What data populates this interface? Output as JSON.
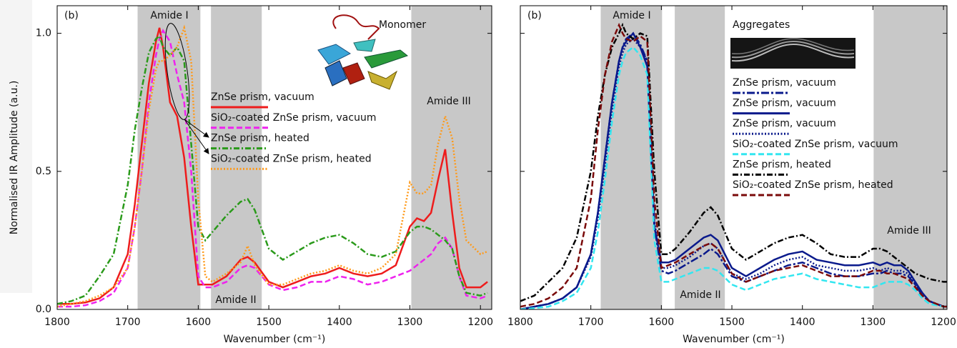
{
  "chart_data": [
    {
      "type": "line",
      "ylabel": "Normalised IR Amplitude (a.u.)",
      "xlabel": "Wavenumber (cm⁻¹)",
      "xlim": [
        1800,
        1184
      ],
      "ylim": [
        0,
        1.1
      ],
      "xticks": [
        1800,
        1700,
        1600,
        1500,
        1400,
        1300,
        1200
      ],
      "yticks": [
        {
          "value": 0,
          "label": "0.0"
        },
        0.5,
        {
          "value": 1,
          "label": "1.0"
        }
      ],
      "bands": [
        [
          1686,
          1597
        ],
        [
          1582,
          1510
        ],
        [
          1298,
          1184
        ]
      ],
      "band_color": "#c8c8c8",
      "annotations": [
        "(b)",
        "Amide I",
        "Monomer",
        "Amide III",
        "Amide II"
      ],
      "x": [
        1800,
        1780,
        1760,
        1740,
        1720,
        1700,
        1690,
        1680,
        1670,
        1660,
        1655,
        1650,
        1640,
        1630,
        1620,
        1610,
        1600,
        1590,
        1580,
        1560,
        1540,
        1530,
        1520,
        1500,
        1480,
        1460,
        1440,
        1420,
        1400,
        1380,
        1360,
        1340,
        1320,
        1300,
        1290,
        1280,
        1270,
        1260,
        1250,
        1240,
        1230,
        1220,
        1200,
        1190
      ],
      "series": [
        {
          "name": "ZnSe prism, vacuum",
          "color": "#ee1c1c",
          "style": "solid",
          "values": [
            0.02,
            0.02,
            0.025,
            0.04,
            0.08,
            0.2,
            0.38,
            0.6,
            0.82,
            0.97,
            1.02,
            0.95,
            0.75,
            0.7,
            0.55,
            0.3,
            0.09,
            0.09,
            0.09,
            0.12,
            0.18,
            0.19,
            0.17,
            0.1,
            0.08,
            0.1,
            0.12,
            0.13,
            0.15,
            0.13,
            0.12,
            0.13,
            0.16,
            0.3,
            0.33,
            0.32,
            0.35,
            0.47,
            0.58,
            0.35,
            0.15,
            0.08,
            0.08,
            0.1
          ]
        },
        {
          "name": "SiO₂-coated ZnSe prism, vacuum",
          "color": "#ee22ee",
          "style": "dashed",
          "values": [
            0.01,
            0.01,
            0.015,
            0.03,
            0.06,
            0.15,
            0.3,
            0.5,
            0.75,
            0.92,
            0.98,
            1.01,
            0.97,
            0.85,
            0.75,
            0.5,
            0.12,
            0.08,
            0.08,
            0.1,
            0.15,
            0.16,
            0.15,
            0.09,
            0.07,
            0.08,
            0.1,
            0.1,
            0.12,
            0.11,
            0.09,
            0.1,
            0.12,
            0.14,
            0.16,
            0.18,
            0.2,
            0.24,
            0.26,
            0.22,
            0.12,
            0.05,
            0.04,
            0.05
          ]
        },
        {
          "name": "ZnSe prism, heated",
          "color": "#2a9a1a",
          "style": "dashdot",
          "values": [
            0.02,
            0.03,
            0.05,
            0.12,
            0.2,
            0.45,
            0.65,
            0.8,
            0.93,
            0.98,
            0.99,
            0.95,
            0.92,
            0.95,
            0.9,
            0.6,
            0.3,
            0.25,
            0.28,
            0.34,
            0.39,
            0.4,
            0.36,
            0.22,
            0.18,
            0.21,
            0.24,
            0.26,
            0.27,
            0.24,
            0.2,
            0.19,
            0.21,
            0.28,
            0.3,
            0.3,
            0.29,
            0.27,
            0.25,
            0.22,
            0.12,
            0.06,
            0.05,
            0.06
          ]
        },
        {
          "name": "SiO₂-coated ZnSe prism, heated",
          "color": "#ff9a1a",
          "style": "dotted",
          "values": [
            0.01,
            0.02,
            0.03,
            0.05,
            0.08,
            0.15,
            0.3,
            0.5,
            0.72,
            0.87,
            0.9,
            0.9,
            0.92,
            0.95,
            1.02,
            0.9,
            0.4,
            0.12,
            0.1,
            0.13,
            0.17,
            0.23,
            0.16,
            0.09,
            0.09,
            0.11,
            0.13,
            0.14,
            0.16,
            0.14,
            0.13,
            0.15,
            0.2,
            0.46,
            0.42,
            0.42,
            0.45,
            0.6,
            0.7,
            0.62,
            0.4,
            0.25,
            0.2,
            0.21
          ]
        }
      ]
    },
    {
      "type": "line",
      "xlabel": "Wavenumber (cm⁻¹)",
      "xlim": [
        1800,
        1195
      ],
      "ylim": [
        0,
        1.1
      ],
      "xticks": [
        1800,
        1700,
        1600,
        1500,
        1400,
        1300,
        1200
      ],
      "yticks": [
        0,
        0.5,
        1
      ],
      "bands": [
        [
          1686,
          1599
        ],
        [
          1581,
          1510
        ],
        [
          1299,
          1195
        ]
      ],
      "band_color": "#c8c8c8",
      "annotations": [
        "(b)",
        "Amide I",
        "Aggregates",
        "Amide II",
        "Amide III"
      ],
      "x": [
        1800,
        1780,
        1760,
        1740,
        1720,
        1700,
        1690,
        1680,
        1670,
        1660,
        1655,
        1650,
        1640,
        1630,
        1620,
        1610,
        1600,
        1590,
        1580,
        1560,
        1540,
        1530,
        1520,
        1500,
        1480,
        1460,
        1440,
        1420,
        1400,
        1380,
        1360,
        1340,
        1320,
        1300,
        1290,
        1280,
        1270,
        1260,
        1250,
        1240,
        1230,
        1220,
        1200,
        1195
      ],
      "series": [
        {
          "name": "ZnSe prism, vacuum",
          "color": "#0a1a8c",
          "style": "longdashdot",
          "values": [
            0.0,
            0.01,
            0.02,
            0.04,
            0.08,
            0.2,
            0.35,
            0.55,
            0.75,
            0.9,
            0.95,
            0.98,
            1.0,
            0.96,
            0.9,
            0.3,
            0.14,
            0.13,
            0.14,
            0.17,
            0.2,
            0.22,
            0.2,
            0.12,
            0.1,
            0.12,
            0.14,
            0.16,
            0.17,
            0.15,
            0.13,
            0.12,
            0.12,
            0.13,
            0.13,
            0.14,
            0.13,
            0.13,
            0.12,
            0.09,
            0.05,
            0.03,
            0.01,
            0.01
          ]
        },
        {
          "name": "ZnSe prism, vacuum",
          "color": "#0a1a8c",
          "style": "solid",
          "values": [
            0.0,
            0.01,
            0.02,
            0.04,
            0.08,
            0.2,
            0.35,
            0.55,
            0.75,
            0.9,
            0.95,
            0.97,
            1.0,
            0.95,
            0.88,
            0.3,
            0.17,
            0.17,
            0.18,
            0.22,
            0.26,
            0.27,
            0.25,
            0.15,
            0.12,
            0.15,
            0.18,
            0.2,
            0.21,
            0.18,
            0.17,
            0.16,
            0.16,
            0.17,
            0.16,
            0.17,
            0.16,
            0.16,
            0.14,
            0.1,
            0.06,
            0.03,
            0.01,
            0.01
          ]
        },
        {
          "name": "ZnSe prism, vacuum",
          "color": "#0a1a8c",
          "style": "dotted",
          "values": [
            0.0,
            0.01,
            0.02,
            0.04,
            0.08,
            0.19,
            0.33,
            0.52,
            0.72,
            0.88,
            0.93,
            0.96,
            0.98,
            0.95,
            0.9,
            0.32,
            0.15,
            0.15,
            0.16,
            0.19,
            0.23,
            0.24,
            0.22,
            0.13,
            0.11,
            0.13,
            0.16,
            0.18,
            0.19,
            0.16,
            0.15,
            0.14,
            0.14,
            0.15,
            0.14,
            0.15,
            0.14,
            0.14,
            0.13,
            0.09,
            0.05,
            0.03,
            0.01,
            0.01
          ]
        },
        {
          "name": "SiO₂-coated ZnSe prism, vacuum",
          "color": "#33e6f0",
          "style": "dashed",
          "values": [
            0.0,
            0.005,
            0.01,
            0.03,
            0.06,
            0.15,
            0.28,
            0.47,
            0.68,
            0.85,
            0.9,
            0.93,
            0.95,
            0.92,
            0.85,
            0.25,
            0.1,
            0.1,
            0.11,
            0.13,
            0.15,
            0.15,
            0.14,
            0.09,
            0.07,
            0.09,
            0.11,
            0.12,
            0.13,
            0.11,
            0.1,
            0.09,
            0.08,
            0.08,
            0.09,
            0.1,
            0.1,
            0.1,
            0.09,
            0.07,
            0.04,
            0.02,
            0.01,
            0.01
          ]
        },
        {
          "name": "ZnSe prism, heated",
          "color": "#000000",
          "style": "dashdot",
          "values": [
            0.03,
            0.05,
            0.1,
            0.15,
            0.26,
            0.5,
            0.7,
            0.85,
            0.95,
            1.0,
            1.03,
            1.0,
            0.98,
            1.0,
            0.99,
            0.5,
            0.2,
            0.2,
            0.22,
            0.28,
            0.35,
            0.37,
            0.34,
            0.22,
            0.18,
            0.21,
            0.24,
            0.26,
            0.27,
            0.24,
            0.2,
            0.19,
            0.19,
            0.22,
            0.22,
            0.21,
            0.19,
            0.17,
            0.15,
            0.13,
            0.12,
            0.11,
            0.1,
            0.1
          ]
        },
        {
          "name": "SiO₂-coated ZnSe prism, heated",
          "color": "#7a0a0a",
          "style": "dashed",
          "values": [
            0.01,
            0.02,
            0.04,
            0.08,
            0.15,
            0.4,
            0.65,
            0.85,
            0.97,
            1.03,
            1.0,
            0.98,
            0.97,
            0.99,
            0.97,
            0.4,
            0.15,
            0.16,
            0.17,
            0.2,
            0.23,
            0.24,
            0.22,
            0.13,
            0.1,
            0.12,
            0.14,
            0.15,
            0.16,
            0.14,
            0.12,
            0.12,
            0.12,
            0.14,
            0.14,
            0.13,
            0.13,
            0.12,
            0.11,
            0.08,
            0.05,
            0.03,
            0.01,
            0.01
          ]
        }
      ]
    }
  ]
}
